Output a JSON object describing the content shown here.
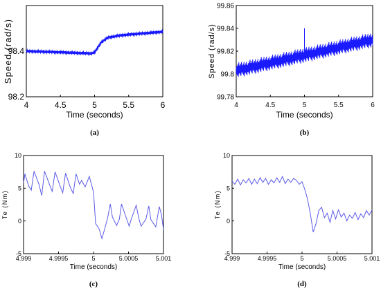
{
  "colors": {
    "trace": "#1a1aff",
    "trace_light": "#5a5ae8",
    "axis": "#000000",
    "background": "#ffffff"
  },
  "chart_data": [
    {
      "panel": "(a)",
      "type": "line",
      "xlabel": "Time (seconds)",
      "ylabel": "Speed (rad/s)",
      "xlim": [
        4,
        6
      ],
      "ylim": [
        98.2,
        98.6
      ],
      "xticks": [
        "4",
        "4.5",
        "5",
        "5.5",
        "6"
      ],
      "xtick_values": [
        4,
        4.5,
        5,
        5.5,
        6
      ],
      "yticks": [
        "98.2",
        "98.4"
      ],
      "ytick_values": [
        98.2,
        98.4
      ],
      "series": [
        {
          "x": [
            4.0,
            4.5,
            4.95,
            5.0,
            5.1,
            5.2,
            5.4,
            5.6,
            5.8,
            6.0
          ],
          "y": [
            98.4,
            98.395,
            98.39,
            98.395,
            98.44,
            98.46,
            98.47,
            98.475,
            98.48,
            98.485
          ],
          "ripple": 0.006
        }
      ]
    },
    {
      "panel": "(b)",
      "type": "line",
      "xlabel": "Time (seconds)",
      "ylabel": "Speed (rad/s)",
      "xlim": [
        4,
        6
      ],
      "ylim": [
        99.78,
        99.86
      ],
      "xticks": [
        "4",
        "4.5",
        "5",
        "5.5",
        "6"
      ],
      "xtick_values": [
        4,
        4.5,
        5,
        5.5,
        6
      ],
      "yticks": [
        "99.78",
        "99.8",
        "99.82",
        "99.84",
        "99.86"
      ],
      "ytick_values": [
        99.78,
        99.8,
        99.82,
        99.84,
        99.86
      ],
      "series": [
        {
          "x": [
            4.0,
            6.0
          ],
          "y": [
            99.803,
            99.83
          ],
          "ripple": 0.007,
          "spike": {
            "x": 5.0,
            "y": 99.84
          }
        }
      ]
    },
    {
      "panel": "(c)",
      "type": "line",
      "xlabel": "Time (seconds)",
      "ylabel": "Te (Nm)",
      "xlim": [
        4.999,
        5.001
      ],
      "ylim": [
        -5,
        10
      ],
      "xticks": [
        "4.999",
        "4.9995",
        "5",
        "5.0005",
        "5.001"
      ],
      "xtick_values": [
        4.999,
        4.9995,
        5.0,
        5.0005,
        5.001
      ],
      "yticks": [
        "-5",
        "0",
        "5",
        "10"
      ],
      "ytick_values": [
        -5,
        0,
        5,
        10
      ],
      "series": [
        {
          "x": [
            4.999,
            4.99902,
            4.99907,
            4.99911,
            4.99915,
            4.99922,
            4.99926,
            4.9993,
            4.99937,
            4.99941,
            4.99945,
            4.99952,
            4.99956,
            4.9996,
            4.99967,
            4.99971,
            4.99975,
            4.9998,
            4.99983,
            4.99988,
            4.99994,
            5.0,
            5.00003,
            5.00008,
            5.00012,
            5.00016,
            5.0002,
            5.00024,
            5.00027,
            5.00033,
            5.00037,
            5.0004,
            5.00047,
            5.00051,
            5.00054,
            5.00061,
            5.00065,
            5.00068,
            5.00075,
            5.00079,
            5.00082,
            5.00089,
            5.00094,
            5.00097,
            5.001
          ],
          "y": [
            5.8,
            7.2,
            5.4,
            4.7,
            7.6,
            5.6,
            3.9,
            7.6,
            5.6,
            4.5,
            7.5,
            5.4,
            4.3,
            7.3,
            5.1,
            4.2,
            7.2,
            5.6,
            6.2,
            5.2,
            6.8,
            4.4,
            -0.4,
            -1.2,
            -2.7,
            -1.2,
            0.4,
            2.6,
            0.6,
            -0.7,
            0.3,
            2.6,
            0.4,
            -0.8,
            0.3,
            2.4,
            0.3,
            -0.8,
            0.3,
            2.3,
            0.2,
            -0.9,
            2.2,
            1.0,
            -1.3
          ]
        }
      ]
    },
    {
      "panel": "(d)",
      "type": "line",
      "xlabel": "Time (seconds)",
      "ylabel": "Te (Nm)",
      "xlim": [
        4.999,
        5.001
      ],
      "ylim": [
        -5,
        10
      ],
      "xticks": [
        "4.999",
        "4.9995",
        "5",
        "5.0005",
        "5.001"
      ],
      "xtick_values": [
        4.999,
        4.9995,
        5.0,
        5.0005,
        5.001
      ],
      "yticks": [
        "-5",
        "0",
        "5",
        "10"
      ],
      "ytick_values": [
        -5,
        0,
        5,
        10
      ],
      "series": [
        {
          "x": [
            4.999,
            4.99904,
            4.99908,
            4.99912,
            4.99916,
            4.9992,
            4.99924,
            4.99928,
            4.99932,
            4.99936,
            4.9994,
            4.99944,
            4.99948,
            4.99952,
            4.99956,
            4.9996,
            4.99964,
            4.99968,
            4.99972,
            4.99976,
            4.9998,
            4.99984,
            4.99988,
            4.99992,
            4.99996,
            5.0,
            5.00004,
            5.00008,
            5.00012,
            5.00016,
            5.0002,
            5.00024,
            5.00028,
            5.00032,
            5.00036,
            5.0004,
            5.00044,
            5.00048,
            5.00052,
            5.00056,
            5.0006,
            5.00064,
            5.00068,
            5.00072,
            5.00076,
            5.0008,
            5.00084,
            5.00088,
            5.00092,
            5.00096,
            5.001
          ],
          "y": [
            6.1,
            5.6,
            6.4,
            5.5,
            6.3,
            5.8,
            6.5,
            5.6,
            6.4,
            5.7,
            6.6,
            5.9,
            6.5,
            5.6,
            6.3,
            5.8,
            6.6,
            5.9,
            6.8,
            5.7,
            6.4,
            5.9,
            6.5,
            6.2,
            5.6,
            6.0,
            4.8,
            3.3,
            1.0,
            -1.7,
            -0.4,
            1.6,
            2.1,
            0.5,
            1.2,
            -0.2,
            1.6,
            0.3,
            1.7,
            0.6,
            1.2,
            0.0,
            0.9,
            0.4,
            1.3,
            0.2,
            1.1,
            0.5,
            1.6,
            0.9,
            1.7
          ]
        }
      ]
    }
  ],
  "captions": [
    "(a)",
    "(b)",
    "(c)",
    "(d)"
  ]
}
